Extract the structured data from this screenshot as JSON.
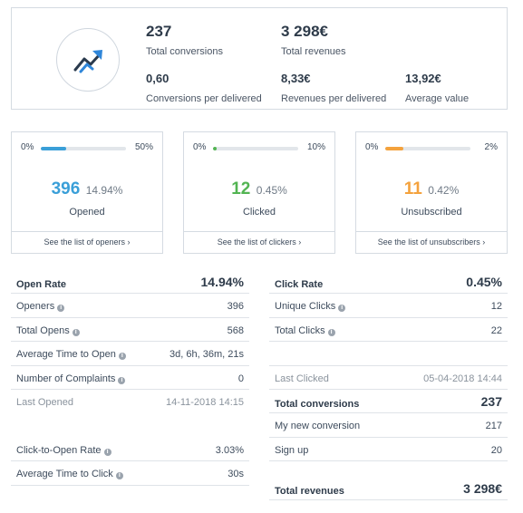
{
  "summary": {
    "total_conversions_value": "237",
    "total_conversions_label": "Total conversions",
    "total_revenues_value": "3 298€",
    "total_revenues_label": "Total revenues",
    "conv_per_delivered_value": "0,60",
    "conv_per_delivered_label": "Conversions per delivered",
    "rev_per_delivered_value": "8,33€",
    "rev_per_delivered_label": "Revenues per delivered",
    "avg_value_value": "13,92€",
    "avg_value_label": "Average value",
    "icon": "trending-up-icon",
    "icon_color": "#2f86d9"
  },
  "cards": [
    {
      "min": "0%",
      "max": "50%",
      "fill_fraction": 0.3,
      "color": "#3a9fd8",
      "count": "396",
      "pct": "14.94%",
      "label": "Opened",
      "link": "See the list of openers ›"
    },
    {
      "min": "0%",
      "max": "10%",
      "fill_fraction": 0.045,
      "color": "#52b452",
      "count": "12",
      "pct": "0.45%",
      "label": "Clicked",
      "link": "See the list of clickers ›"
    },
    {
      "min": "0%",
      "max": "2%",
      "fill_fraction": 0.21,
      "color": "#f4a23d",
      "count": "11",
      "pct": "0.42%",
      "label": "Unsubscribed",
      "link": "See the list of unsubscribers ›"
    }
  ],
  "left_table": {
    "open_rate_label": "Open Rate",
    "open_rate_value": "14.94%",
    "openers_label": "Openers",
    "openers_value": "396",
    "total_opens_label": "Total Opens",
    "total_opens_value": "568",
    "avg_time_open_label": "Average Time to Open",
    "avg_time_open_value": "3d, 6h, 36m, 21s",
    "complaints_label": "Number of Complaints",
    "complaints_value": "0",
    "last_opened_label": "Last Opened",
    "last_opened_value": "14-11-2018 14:15",
    "cto_label": "Click-to-Open Rate",
    "cto_value": "3.03%",
    "avg_time_click_label": "Average Time to Click",
    "avg_time_click_value": "30s"
  },
  "right_table": {
    "click_rate_label": "Click Rate",
    "click_rate_value": "0.45%",
    "unique_clicks_label": "Unique Clicks",
    "unique_clicks_value": "12",
    "total_clicks_label": "Total Clicks",
    "total_clicks_value": "22",
    "last_clicked_label": "Last Clicked",
    "last_clicked_value": "05-04-2018 14:44",
    "total_conversions_label": "Total conversions",
    "total_conversions_value": "237",
    "my_new_conversion_label": "My new conversion",
    "my_new_conversion_value": "217",
    "sign_up_label": "Sign up",
    "sign_up_value": "20",
    "total_revenues_label": "Total revenues",
    "total_revenues_value": "3 298€"
  },
  "info_icon": "info-icon"
}
